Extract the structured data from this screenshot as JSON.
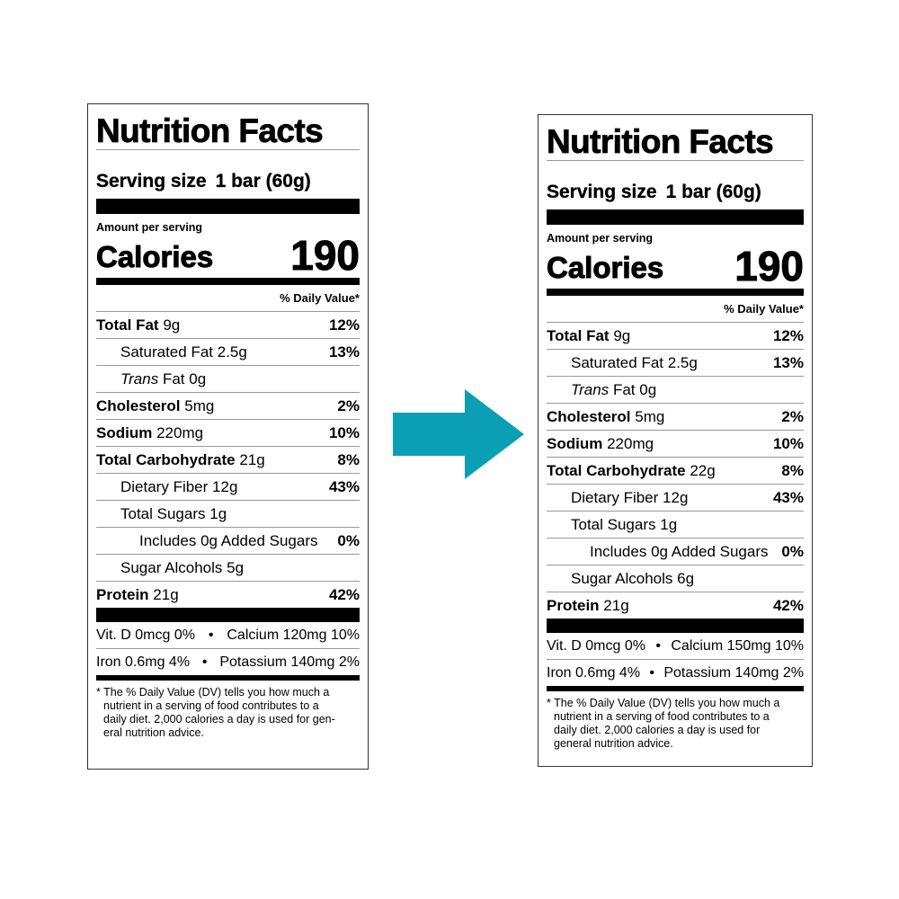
{
  "arrow_color": "#0a9fb5",
  "labels": [
    {
      "title": "Nutrition Facts",
      "serving_label": "Serving size",
      "serving_value": "1 bar (60g)",
      "amount_per_serving": "Amount per serving",
      "calories_label": "Calories",
      "calories_value": "190",
      "daily_value_header": "% Daily Value*",
      "nutrients": [
        {
          "name": "Total Fat",
          "amount": "9g",
          "dv": "12%",
          "bold": true,
          "indent": 0
        },
        {
          "name": "Saturated Fat",
          "amount": "2.5g",
          "dv": "13%",
          "bold": false,
          "indent": 1
        },
        {
          "name": "Trans",
          "name_suffix": "Fat",
          "amount": "0g",
          "dv": "",
          "bold": false,
          "indent": 1,
          "italic": true
        },
        {
          "name": "Cholesterol",
          "amount": "5mg",
          "dv": "2%",
          "bold": true,
          "indent": 0
        },
        {
          "name": "Sodium",
          "amount": "220mg",
          "dv": "10%",
          "bold": true,
          "indent": 0
        },
        {
          "name": "Total Carbohydrate",
          "amount": "21g",
          "dv": "8%",
          "bold": true,
          "indent": 0
        },
        {
          "name": "Dietary Fiber",
          "amount": "12g",
          "dv": "43%",
          "bold": false,
          "indent": 1
        },
        {
          "name": "Total Sugars",
          "amount": "1g",
          "dv": "",
          "bold": false,
          "indent": 1
        },
        {
          "name": "Includes",
          "amount": "0g Added Sugars",
          "dv": "0%",
          "bold": false,
          "indent": 2
        },
        {
          "name": "Sugar Alcohols",
          "amount": "5g",
          "dv": "",
          "bold": false,
          "indent": 1
        },
        {
          "name": "Protein",
          "amount": "21g",
          "dv": "42%",
          "bold": true,
          "indent": 0
        }
      ],
      "minerals": [
        {
          "left": "Vit. D 0mcg 0%",
          "right": "Calcium 120mg 10%"
        },
        {
          "left": "Iron 0.6mg 4%",
          "right": "Potassium 140mg 2%"
        }
      ],
      "bullet": "•",
      "footnote_lines": [
        "* The % Daily Value (DV) tells you how much a",
        "nutrient in a serving of food contributes to a",
        "daily diet. 2,000 calories a day is used for gen-",
        "eral nutrition advice."
      ]
    },
    {
      "title": "Nutrition Facts",
      "serving_label": "Serving size",
      "serving_value": "1 bar (60g)",
      "amount_per_serving": "Amount per serving",
      "calories_label": "Calories",
      "calories_value": "190",
      "daily_value_header": "% Daily Value*",
      "nutrients": [
        {
          "name": "Total Fat",
          "amount": "9g",
          "dv": "12%",
          "bold": true,
          "indent": 0
        },
        {
          "name": "Saturated Fat",
          "amount": "2.5g",
          "dv": "13%",
          "bold": false,
          "indent": 1
        },
        {
          "name": "Trans",
          "name_suffix": "Fat",
          "amount": "0g",
          "dv": "",
          "bold": false,
          "indent": 1,
          "italic": true
        },
        {
          "name": "Cholesterol",
          "amount": "5mg",
          "dv": "2%",
          "bold": true,
          "indent": 0
        },
        {
          "name": "Sodium",
          "amount": "220mg",
          "dv": "10%",
          "bold": true,
          "indent": 0
        },
        {
          "name": "Total Carbohydrate",
          "amount": "22g",
          "dv": "8%",
          "bold": true,
          "indent": 0
        },
        {
          "name": "Dietary Fiber",
          "amount": "12g",
          "dv": "43%",
          "bold": false,
          "indent": 1
        },
        {
          "name": "Total Sugars",
          "amount": "1g",
          "dv": "",
          "bold": false,
          "indent": 1
        },
        {
          "name": "Includes",
          "amount": "0g Added Sugars",
          "dv": "0%",
          "bold": false,
          "indent": 2
        },
        {
          "name": "Sugar Alcohols",
          "amount": "6g",
          "dv": "",
          "bold": false,
          "indent": 1
        },
        {
          "name": "Protein",
          "amount": "21g",
          "dv": "42%",
          "bold": true,
          "indent": 0
        }
      ],
      "minerals": [
        {
          "left": "Vit. D 0mcg 0%",
          "right": "Calcium 150mg 10%"
        },
        {
          "left": "Iron 0.6mg 4%",
          "right": "Potassium 140mg 2%"
        }
      ],
      "bullet": "•",
      "footnote_lines": [
        "* The % Daily Value (DV) tells you how much a",
        "nutrient in a serving of food contributes to a",
        "daily diet. 2,000 calories a day is used for",
        "general nutrition advice."
      ]
    }
  ]
}
